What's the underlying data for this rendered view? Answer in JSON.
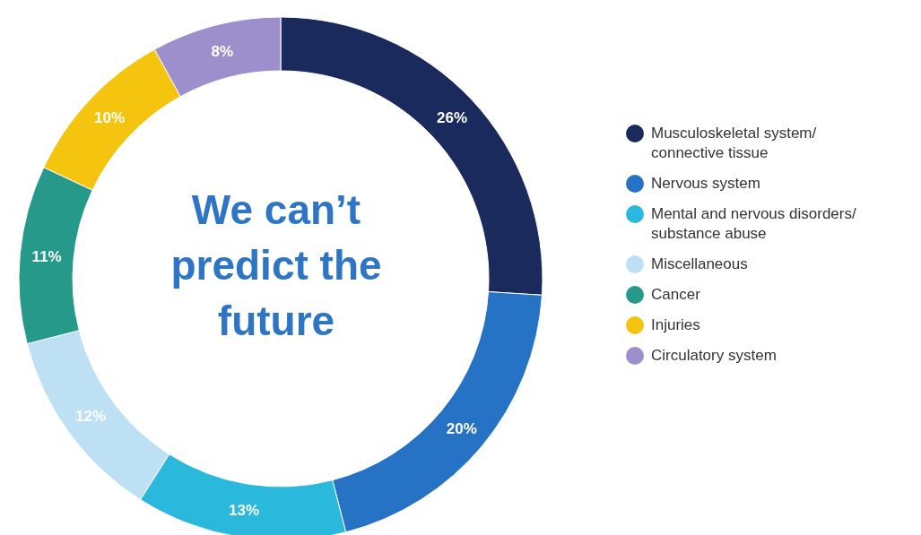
{
  "chart_data": {
    "type": "donut",
    "title": "We can’t predict the future",
    "categories": [
      "Musculoskeletal system/ connective tissue",
      "Nervous system",
      "Mental and nervous disorders/ substance abuse",
      "Miscellaneous",
      "Cancer",
      "Injuries",
      "Circulatory system"
    ],
    "values": [
      26,
      20,
      13,
      12,
      11,
      10,
      8
    ],
    "value_labels": [
      "26%",
      "20%",
      "13%",
      "12%",
      "11%",
      "10%",
      "8%"
    ],
    "colors": [
      "#1b2a5c",
      "#2672c4",
      "#2bb8dd",
      "#bde0f4",
      "#26998a",
      "#f5c40f",
      "#9d8fcb"
    ],
    "legend": "right"
  }
}
